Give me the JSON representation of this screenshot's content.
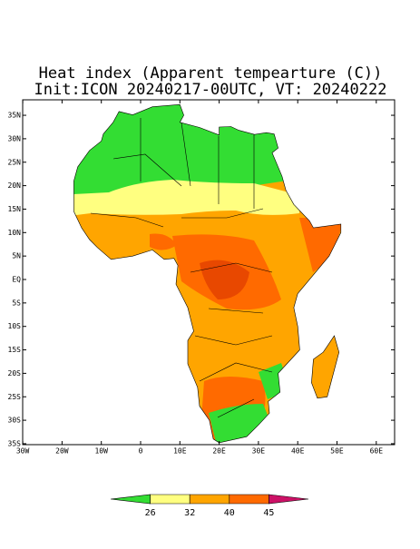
{
  "title": "Heat index (Apparent tempearture (C))",
  "subtitle": "Init:ICON 20240217-00UTC, VT: 20240222",
  "map": {
    "lat_ticks": [
      {
        "value": 35,
        "label": "35N"
      },
      {
        "value": 30,
        "label": "30N"
      },
      {
        "value": 25,
        "label": "25N"
      },
      {
        "value": 20,
        "label": "20N"
      },
      {
        "value": 15,
        "label": "15N"
      },
      {
        "value": 10,
        "label": "10N"
      },
      {
        "value": 5,
        "label": "5N"
      },
      {
        "value": 0,
        "label": "EQ"
      },
      {
        "value": -5,
        "label": "5S"
      },
      {
        "value": -10,
        "label": "10S"
      },
      {
        "value": -15,
        "label": "15S"
      },
      {
        "value": -20,
        "label": "20S"
      },
      {
        "value": -25,
        "label": "25S"
      },
      {
        "value": -30,
        "label": "30S"
      },
      {
        "value": -35,
        "label": "35S"
      }
    ],
    "lon_ticks": [
      {
        "value": -30,
        "label": "30W"
      },
      {
        "value": -20,
        "label": "20W"
      },
      {
        "value": -10,
        "label": "10W"
      },
      {
        "value": 0,
        "label": "0"
      },
      {
        "value": 10,
        "label": "10E"
      },
      {
        "value": 20,
        "label": "20E"
      },
      {
        "value": 30,
        "label": "30E"
      },
      {
        "value": 40,
        "label": "40E"
      },
      {
        "value": 50,
        "label": "50E"
      },
      {
        "value": 60,
        "label": "60E"
      }
    ]
  },
  "colorbar": {
    "levels": [
      26,
      32,
      40,
      45
    ],
    "colors": [
      "#33dd33",
      "#ffff80",
      "#ffa500",
      "#ff6a00",
      "#cc1166"
    ]
  }
}
